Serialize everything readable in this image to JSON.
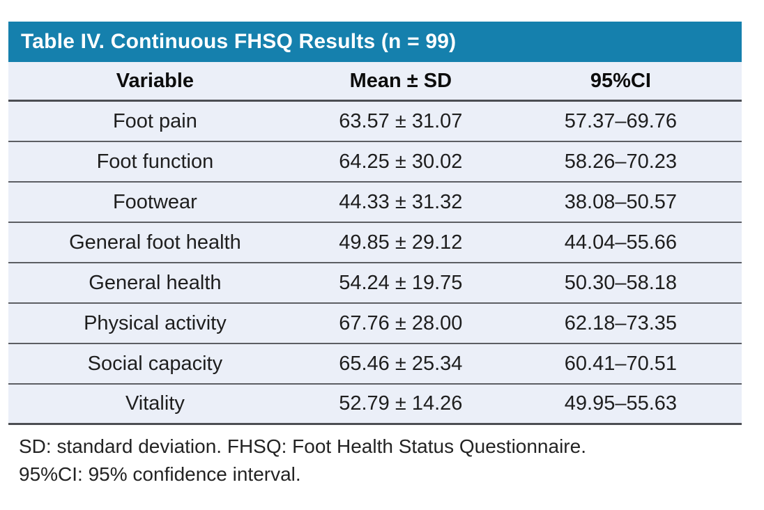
{
  "table": {
    "title": "Table IV. Continuous FHSQ Results (n = 99)",
    "columns": [
      "Variable",
      "Mean ± SD",
      "95%CI"
    ],
    "rows": [
      {
        "variable": "Foot pain",
        "mean_sd": "63.57 ± 31.07",
        "ci": "57.37–69.76"
      },
      {
        "variable": "Foot function",
        "mean_sd": "64.25 ± 30.02",
        "ci": "58.26–70.23"
      },
      {
        "variable": "Footwear",
        "mean_sd": "44.33 ± 31.32",
        "ci": "38.08–50.57"
      },
      {
        "variable": "General foot health",
        "mean_sd": "49.85 ± 29.12",
        "ci": "44.04–55.66"
      },
      {
        "variable": "General health",
        "mean_sd": "54.24 ± 19.75",
        "ci": "50.30–58.18"
      },
      {
        "variable": "Physical activity",
        "mean_sd": "67.76 ± 28.00",
        "ci": "62.18–73.35"
      },
      {
        "variable": "Social capacity",
        "mean_sd": "65.46 ± 25.34",
        "ci": "60.41–70.51"
      },
      {
        "variable": "Vitality",
        "mean_sd": "52.79 ± 14.26",
        "ci": "49.95–55.63"
      }
    ],
    "footnotes": [
      "SD: standard deviation. FHSQ: Foot Health Status Questionnaire.",
      "95%CI: 95% confidence interval."
    ],
    "sample_size": "n = 99"
  },
  "chart_data": {
    "type": "table",
    "title": "Table IV. Continuous FHSQ Results (n = 99)",
    "columns": [
      "Variable",
      "Mean ± SD",
      "95%CI"
    ],
    "rows": [
      [
        "Foot pain",
        "63.57 ± 31.07",
        "57.37–69.76"
      ],
      [
        "Foot function",
        "64.25 ± 30.02",
        "58.26–70.23"
      ],
      [
        "Footwear",
        "44.33 ± 31.32",
        "38.08–50.57"
      ],
      [
        "General foot health",
        "49.85 ± 29.12",
        "44.04–55.66"
      ],
      [
        "General health",
        "54.24 ± 19.75",
        "50.30–58.18"
      ],
      [
        "Physical activity",
        "67.76 ± 28.00",
        "62.18–73.35"
      ],
      [
        "Social capacity",
        "65.46 ± 25.34",
        "60.41–70.51"
      ],
      [
        "Vitality",
        "52.79 ± 14.26",
        "49.95–55.63"
      ]
    ]
  },
  "colors": {
    "title_bar_bg": "#1580ad",
    "title_text": "#ffffff",
    "row_bg": "#ebeff8",
    "rule_dark": "#4c4e53",
    "rule_light": "#5c5e63",
    "body_text": "#1e1e1e",
    "page_bg": "#ffffff"
  }
}
